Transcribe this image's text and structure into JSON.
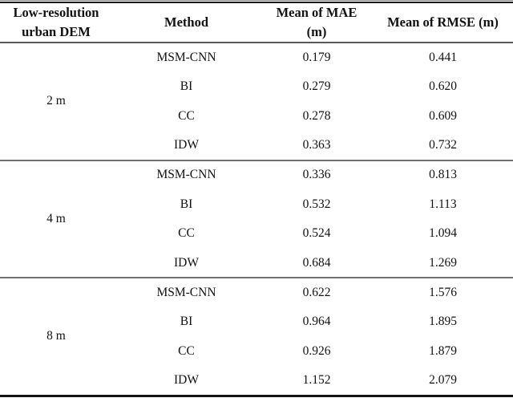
{
  "table": {
    "col_headers": {
      "dem": "Low-resolution urban DEM",
      "method": "Method",
      "mae": "Mean of MAE (m)",
      "rmse": "Mean of RMSE (m)"
    },
    "groups": [
      {
        "label": "2 m",
        "rows": [
          {
            "method": "MSM-CNN",
            "mae": "0.179",
            "rmse": "0.441"
          },
          {
            "method": "BI",
            "mae": "0.279",
            "rmse": "0.620"
          },
          {
            "method": "CC",
            "mae": "0.278",
            "rmse": "0.609"
          },
          {
            "method": "IDW",
            "mae": "0.363",
            "rmse": "0.732"
          }
        ]
      },
      {
        "label": "4 m",
        "rows": [
          {
            "method": "MSM-CNN",
            "mae": "0.336",
            "rmse": "0.813"
          },
          {
            "method": "BI",
            "mae": "0.532",
            "rmse": "1.113"
          },
          {
            "method": "CC",
            "mae": "0.524",
            "rmse": "1.094"
          },
          {
            "method": "IDW",
            "mae": "0.684",
            "rmse": "1.269"
          }
        ]
      },
      {
        "label": "8 m",
        "rows": [
          {
            "method": "MSM-CNN",
            "mae": "0.622",
            "rmse": "1.576"
          },
          {
            "method": "BI",
            "mae": "0.964",
            "rmse": "1.895"
          },
          {
            "method": "CC",
            "mae": "0.926",
            "rmse": "1.879"
          },
          {
            "method": "IDW",
            "mae": "1.152",
            "rmse": "2.079"
          }
        ]
      }
    ]
  },
  "colors": {
    "text": "#121212",
    "top_rule_thin": "#8c8c8c",
    "top_rule_thick": "#1a1a1a",
    "header_rule": "#5a5a5a",
    "group_rule": "#707070",
    "bottom_rule": "#151515",
    "background": "#ffffff"
  }
}
